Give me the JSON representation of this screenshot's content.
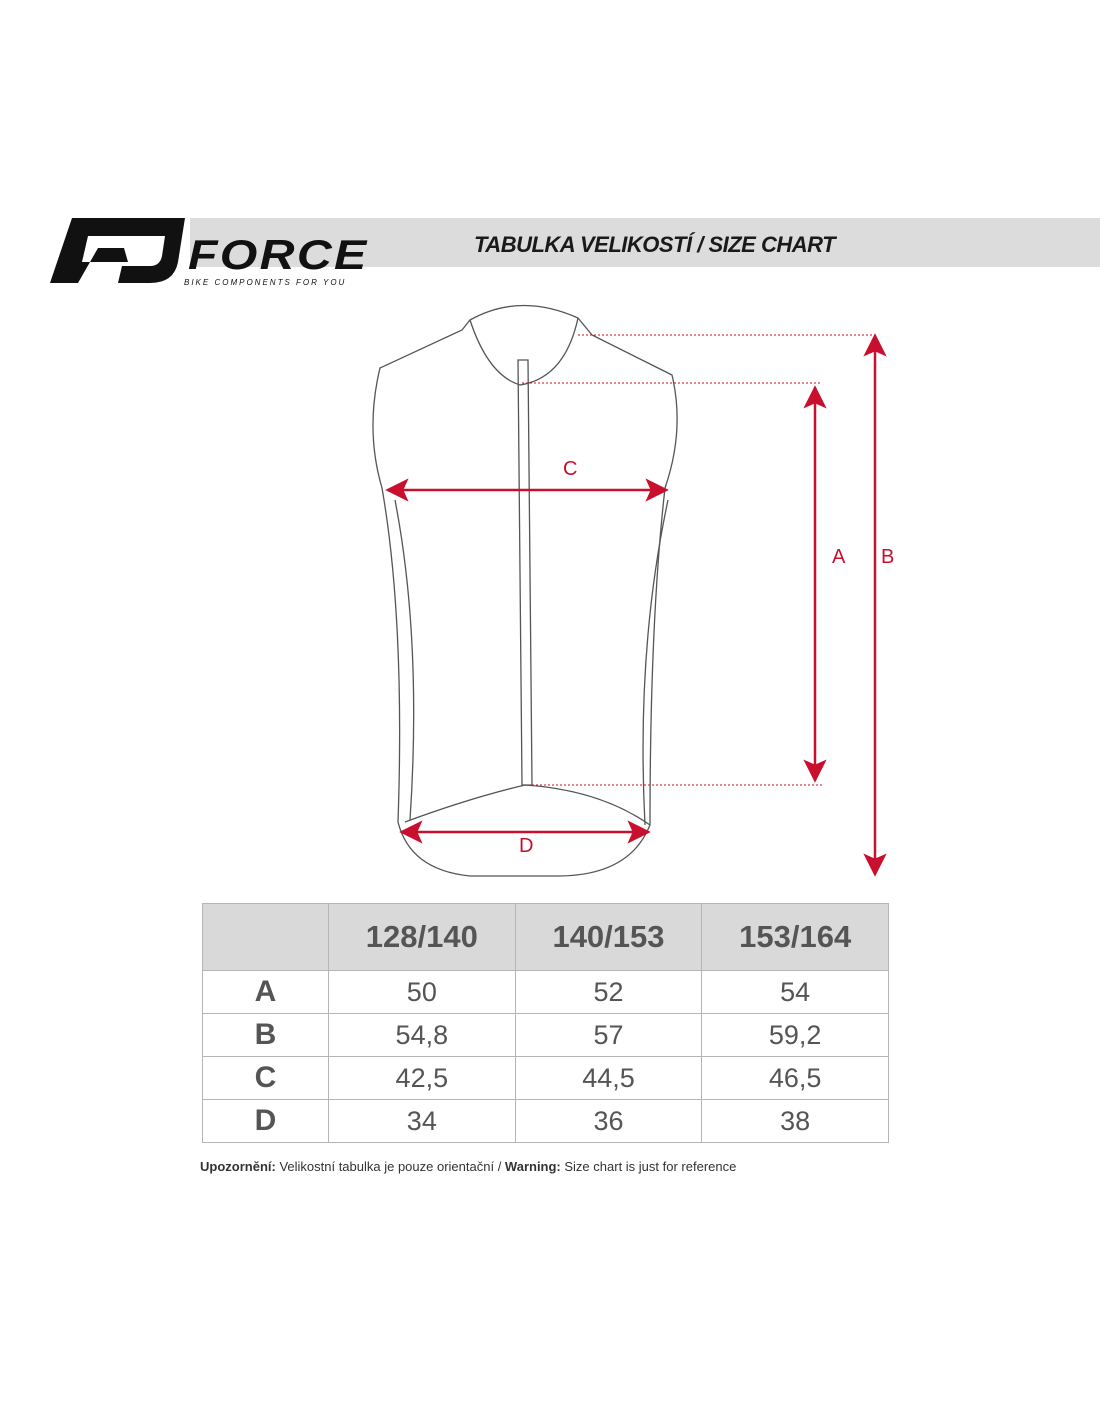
{
  "header": {
    "brand": "FORCE",
    "tagline": "BIKE COMPONENTS FOR YOU",
    "title": "TABULKA VELIKOSTÍ / SIZE CHART"
  },
  "diagram": {
    "labels": {
      "A": "A",
      "B": "B",
      "C": "C",
      "D": "D"
    },
    "accent_color": "#c8102e"
  },
  "table": {
    "columns": [
      "",
      "128/140",
      "140/153",
      "153/164"
    ],
    "rows": [
      {
        "label": "A",
        "values": [
          "50",
          "52",
          "54"
        ]
      },
      {
        "label": "B",
        "values": [
          "54,8",
          "57",
          "59,2"
        ]
      },
      {
        "label": "C",
        "values": [
          "42,5",
          "44,5",
          "46,5"
        ]
      },
      {
        "label": "D",
        "values": [
          "34",
          "36",
          "38"
        ]
      }
    ]
  },
  "note": {
    "cz_label": "Upozornění:",
    "cz_text": " Velikostní tabulka je pouze orientační / ",
    "en_label": "Warning:",
    "en_text": " Size chart is just for reference"
  }
}
